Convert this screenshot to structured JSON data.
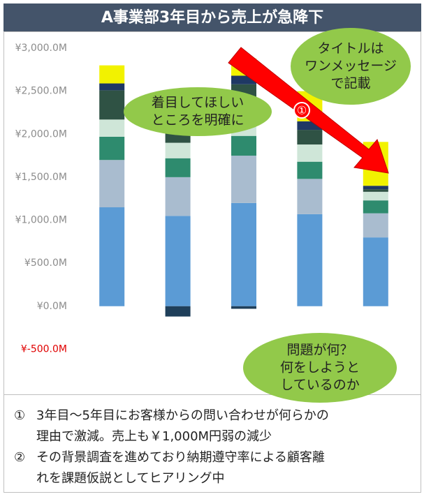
{
  "chart_data": {
    "type": "stacked_bar",
    "title": "A事業部3年目から売上が急降下",
    "ylim": [
      -1000,
      3000
    ],
    "yticks": [
      {
        "value": -500,
        "label": "¥-500.0M"
      },
      {
        "value": 0,
        "label": "¥0.0M"
      },
      {
        "value": 500,
        "label": "¥500.0M"
      },
      {
        "value": 1000,
        "label": "¥1,000.0M"
      },
      {
        "value": 1500,
        "label": "¥1,500.0M"
      },
      {
        "value": 2000,
        "label": "¥2,000.0M"
      },
      {
        "value": 2500,
        "label": "¥2,500.0M"
      },
      {
        "value": 3000,
        "label": "¥3,000.0M"
      }
    ],
    "negative_tick_color": "#e00000",
    "grid": false,
    "series": [
      {
        "color": "#5b9bd5",
        "values": [
          1150,
          1050,
          1200,
          1070,
          800
        ]
      },
      {
        "color": "#a9bccf",
        "values": [
          550,
          450,
          550,
          410,
          280
        ]
      },
      {
        "color": "#2e8b6e",
        "values": [
          270,
          220,
          230,
          200,
          150
        ]
      },
      {
        "color": "#cfe6d8",
        "values": [
          200,
          180,
          200,
          200,
          100
        ]
      },
      {
        "color": "#2f5244",
        "values": [
          340,
          150,
          400,
          170,
          30
        ]
      },
      {
        "color": "#1f3864",
        "values": [
          80,
          null,
          100,
          100,
          40
        ]
      },
      {
        "color": "#f2f200",
        "values": [
          210,
          null,
          200,
          350,
          510
        ]
      },
      {
        "color": "#1f3f5a",
        "values": [
          null,
          -120,
          -30,
          null,
          null
        ]
      }
    ],
    "callouts": [
      {
        "lines": [
          "着目してほしい",
          "ところを明確に"
        ]
      },
      {
        "lines": [
          "タイトルは",
          "ワンメッセージ",
          "で記載"
        ]
      },
      {
        "lines": [
          "問題が何？",
          "何をしようと",
          "しているのか"
        ]
      }
    ],
    "arrow_label": "①"
  },
  "notes": [
    {
      "marker": "①",
      "lines": [
        "3年目～5年目にお客様からの問い合わせが何らかの",
        "理由で激減。売上も￥1,000M円弱の減少"
      ]
    },
    {
      "marker": "②",
      "lines": [
        "その背景調査を進めており納期遵守率による顧客離",
        "れを課題仮説としてヒアリング中"
      ]
    }
  ]
}
